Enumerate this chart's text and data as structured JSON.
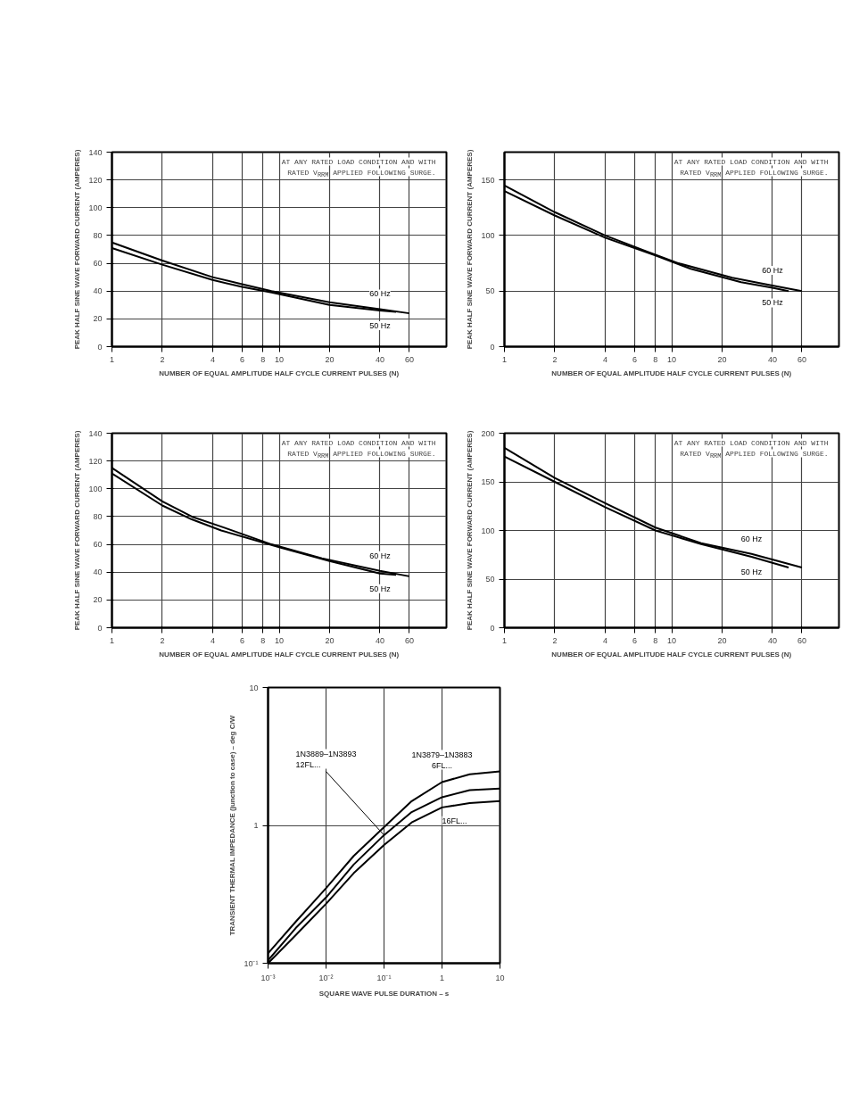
{
  "chart_data": [
    {
      "type": "line",
      "xlabel": "NUMBER OF EQUAL AMPLITUDE HALF CYCLE CURRENT PULSES (N)",
      "ylabel": "PEAK HALF SINE WAVE FORWARD CURRENT (AMPERES)",
      "log": "x",
      "xlim": [
        1,
        100
      ],
      "xticks": [
        1,
        2,
        4,
        6,
        8,
        10,
        20,
        40,
        60
      ],
      "ylim": [
        0,
        140
      ],
      "yticks": [
        0,
        20,
        40,
        60,
        80,
        100,
        120,
        140
      ],
      "grid": true,
      "annotations": [
        "AT ANY RATED LOAD CONDITION AND WITH",
        "RATED V$_{RRM}$ APPLIED FOLLOWING SURGE."
      ],
      "series": [
        {
          "name": "60 Hz",
          "color": "#000000",
          "x": [
            1,
            2,
            4,
            6,
            9,
            20,
            40,
            60
          ],
          "values": [
            75,
            62,
            50,
            45,
            40,
            32,
            27,
            24
          ]
        },
        {
          "name": "50 Hz",
          "color": "#000000",
          "x": [
            1,
            2,
            4,
            6,
            9,
            20,
            40,
            50
          ],
          "values": [
            71,
            59,
            48,
            43,
            39,
            30,
            26,
            25
          ]
        }
      ]
    },
    {
      "type": "line",
      "xlabel": "NUMBER OF EQUAL AMPLITUDE HALF CYCLE CURRENT PULSES (N)",
      "ylabel": "PEAK HALF SINE WAVE FORWARD CURRENT (AMPERES)",
      "log": "x",
      "xlim": [
        1,
        100
      ],
      "xticks": [
        1,
        2,
        4,
        6,
        8,
        10,
        20,
        40,
        60
      ],
      "ylim": [
        0,
        175
      ],
      "yticks": [
        0,
        50,
        100,
        150
      ],
      "grid": true,
      "annotations": [
        "AT ANY RATED LOAD CONDITION AND WITH",
        "RATED V$_{RRM}$ APPLIED FOLLOWING SURGE."
      ],
      "series": [
        {
          "name": "60 Hz",
          "color": "#000000",
          "x": [
            1,
            2,
            4,
            7,
            11,
            23,
            40,
            60
          ],
          "values": [
            145,
            121,
            100,
            86,
            75,
            62,
            55,
            50
          ]
        },
        {
          "name": "50 Hz",
          "color": "#000000",
          "x": [
            1,
            2,
            4,
            8,
            13,
            26,
            40,
            50
          ],
          "values": [
            140,
            118,
            98,
            82,
            70,
            58,
            53,
            50
          ]
        }
      ]
    },
    {
      "type": "line",
      "xlabel": "NUMBER OF EQUAL AMPLITUDE HALF CYCLE CURRENT PULSES (N)",
      "ylabel": "PEAK HALF SINE WAVE FORWARD CURRENT (AMPERES)",
      "log": "x",
      "xlim": [
        1,
        100
      ],
      "xticks": [
        1,
        2,
        4,
        6,
        8,
        10,
        20,
        40,
        60
      ],
      "ylim": [
        0,
        140
      ],
      "yticks": [
        0,
        20,
        40,
        60,
        80,
        100,
        120,
        140
      ],
      "grid": true,
      "annotations": [
        "AT ANY RATED LOAD CONDITION AND WITH",
        "RATED V$_{RRM}$ APPLIED FOLLOWING SURGE."
      ],
      "series": [
        {
          "name": "60 Hz",
          "color": "#000000",
          "x": [
            1,
            2,
            3,
            4.7,
            9,
            18,
            40,
            60
          ],
          "values": [
            115,
            91,
            80,
            72,
            60,
            50,
            41,
            37
          ]
        },
        {
          "name": "50 Hz",
          "color": "#000000",
          "x": [
            1,
            2,
            3,
            4.5,
            10,
            20,
            40,
            50
          ],
          "values": [
            111,
            88,
            78,
            70,
            58,
            48,
            39,
            38
          ]
        }
      ]
    },
    {
      "type": "line",
      "xlabel": "NUMBER OF EQUAL AMPLITUDE HALF CYCLE CURRENT PULSES (N)",
      "ylabel": "PEAK HALF SINE WAVE FORWARD CURRENT (AMPERES)",
      "log": "x",
      "xlim": [
        1,
        100
      ],
      "xticks": [
        1,
        2,
        4,
        6,
        8,
        10,
        20,
        40,
        60
      ],
      "ylim": [
        0,
        200
      ],
      "yticks": [
        0,
        50,
        100,
        150,
        200
      ],
      "grid": true,
      "annotations": [
        "AT ANY RATED LOAD CONDITION AND WITH",
        "RATED V$_{RRM}$ APPLIED FOLLOWING SURGE."
      ],
      "series": [
        {
          "name": "60 Hz",
          "color": "#000000",
          "x": [
            1,
            2,
            4,
            8,
            15,
            30,
            60
          ],
          "values": [
            185,
            154,
            128,
            103,
            87,
            76,
            62
          ]
        },
        {
          "name": "50 Hz",
          "color": "#000000",
          "x": [
            1,
            2,
            4,
            8,
            15,
            30,
            50
          ],
          "values": [
            176,
            150,
            124,
            100,
            86,
            73,
            62
          ]
        }
      ]
    },
    {
      "type": "line",
      "xlabel": "SQUARE WAVE PULSE DURATION – s",
      "ylabel": "TRANSIENT THERMAL IMPEDANCE (junction to case) – deg C/W",
      "log": "xy",
      "xlim": [
        0.001,
        10
      ],
      "xticks": [
        {
          "value": 0.001,
          "label": "10⁻³"
        },
        {
          "value": 0.01,
          "label": "10⁻²"
        },
        {
          "value": 0.1,
          "label": "10⁻¹"
        },
        {
          "value": 1,
          "label": "1"
        },
        {
          "value": 10,
          "label": "10"
        }
      ],
      "ylim": [
        0.1,
        10
      ],
      "yticks": [
        {
          "value": 0.1,
          "label": "10⁻¹"
        },
        {
          "value": 1,
          "label": "1"
        },
        {
          "value": 10,
          "label": "10"
        }
      ],
      "grid": true,
      "series": [
        {
          "name": "1N3879–1N3883 6FL...",
          "color": "#000000",
          "x": [
            0.001,
            0.003,
            0.01,
            0.03,
            0.1,
            0.3,
            1,
            3,
            10
          ],
          "values": [
            0.118,
            0.2,
            0.35,
            0.6,
            0.97,
            1.5,
            2.06,
            2.35,
            2.46
          ]
        },
        {
          "name": "1N3889–1N3893 12FL...",
          "color": "#000000",
          "x": [
            0.001,
            0.003,
            0.01,
            0.03,
            0.1,
            0.3,
            1,
            3,
            10
          ],
          "values": [
            0.105,
            0.18,
            0.3,
            0.52,
            0.85,
            1.25,
            1.6,
            1.8,
            1.85
          ]
        },
        {
          "name": "16FL...",
          "color": "#000000",
          "x": [
            0.001,
            0.003,
            0.01,
            0.03,
            0.1,
            0.3,
            1,
            3,
            10
          ],
          "values": [
            0.1,
            0.16,
            0.27,
            0.45,
            0.72,
            1.05,
            1.35,
            1.45,
            1.5
          ]
        }
      ]
    }
  ]
}
